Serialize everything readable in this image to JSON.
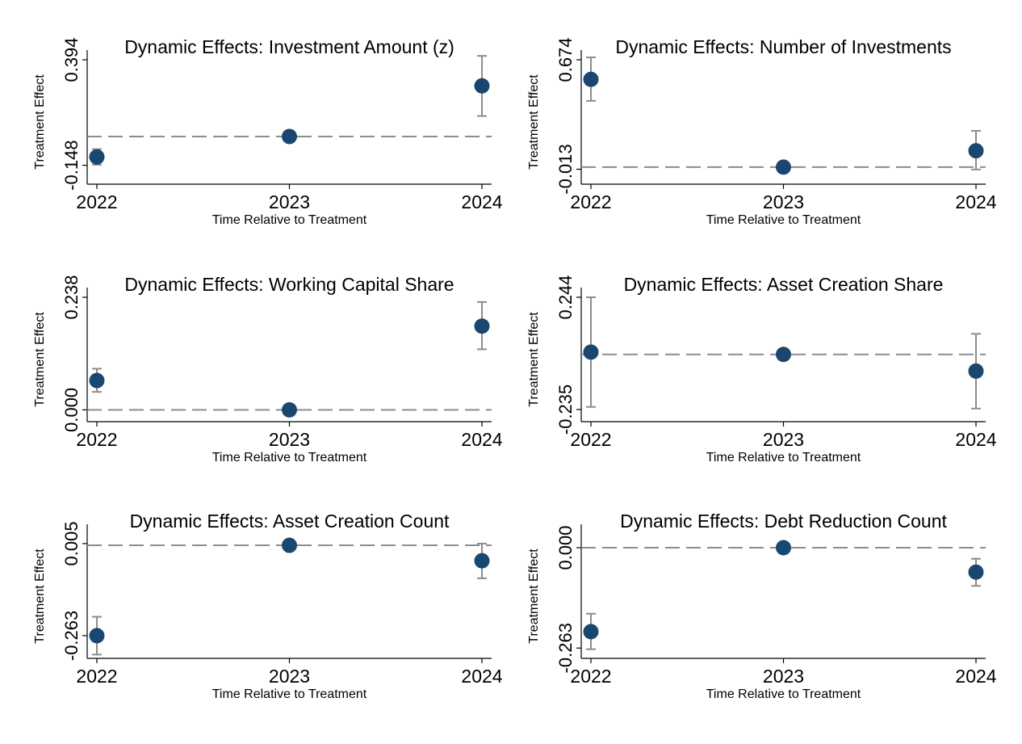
{
  "colors": {
    "marker": "#1a476f",
    "ci": "#8c8c8c",
    "reference": "#8c8c8c",
    "axis": "#000000"
  },
  "chart_data": [
    {
      "type": "scatter",
      "title": "Dynamic Effects: Investment Amount (z)",
      "xlabel": "Time Relative to Treatment",
      "ylabel": "Treatment Effect",
      "x": [
        2022,
        2023,
        2024
      ],
      "xticks": [
        "2022",
        "2023",
        "2024"
      ],
      "yticks": [
        "-0.148",
        "0.394"
      ],
      "ytick_values": [
        -0.148,
        0.394
      ],
      "ylim": [
        -0.245,
        0.394
      ],
      "reference_line": 0,
      "estimates": [
        -0.105,
        0.0,
        0.26
      ],
      "ci_low": [
        -0.145,
        0.0,
        0.105
      ],
      "ci_high": [
        -0.065,
        0.0,
        0.414
      ],
      "grid": false,
      "legend": "none"
    },
    {
      "type": "scatter",
      "title": "Dynamic Effects: Number of Investments",
      "xlabel": "Time Relative to Treatment",
      "ylabel": "Treatment Effect",
      "x": [
        2022,
        2023,
        2024
      ],
      "xticks": [
        "2022",
        "2023",
        "2024"
      ],
      "yticks": [
        "-0.013",
        "0.674"
      ],
      "ytick_values": [
        -0.013,
        0.674
      ],
      "ylim": [
        -0.107,
        0.674
      ],
      "reference_line": 0,
      "estimates": [
        0.551,
        0.0,
        0.103
      ],
      "ci_low": [
        0.416,
        0.0,
        -0.015
      ],
      "ci_high": [
        0.689,
        0.0,
        0.228
      ],
      "grid": false,
      "legend": "none"
    },
    {
      "type": "scatter",
      "title": "Dynamic Effects: Working Capital Share",
      "xlabel": "Time Relative to Treatment",
      "ylabel": "Treatment Effect",
      "x": [
        2022,
        2023,
        2024
      ],
      "xticks": [
        "2022",
        "2023",
        "2024"
      ],
      "yticks": [
        "0.000",
        "0.238"
      ],
      "ytick_values": [
        0.0,
        0.238
      ],
      "ylim": [
        -0.025,
        0.238
      ],
      "reference_line": 0,
      "estimates": [
        0.062,
        0.0,
        0.177
      ],
      "ci_low": [
        0.038,
        0.0,
        0.128
      ],
      "ci_high": [
        0.087,
        0.0,
        0.228
      ],
      "grid": false,
      "legend": "none"
    },
    {
      "type": "scatter",
      "title": "Dynamic Effects: Asset Creation Share",
      "xlabel": "Time Relative to Treatment",
      "ylabel": "Treatment Effect",
      "x": [
        2022,
        2023,
        2024
      ],
      "xticks": [
        "2022",
        "2023",
        "2024"
      ],
      "yticks": [
        "-0.235",
        "0.244"
      ],
      "ytick_values": [
        -0.235,
        0.244
      ],
      "ylim": [
        -0.287,
        0.244
      ],
      "reference_line": 0,
      "estimates": [
        0.01,
        0.0,
        -0.071
      ],
      "ci_low": [
        -0.224,
        0.0,
        -0.231
      ],
      "ci_high": [
        0.244,
        0.0,
        0.088
      ],
      "grid": false,
      "legend": "none"
    },
    {
      "type": "scatter",
      "title": "Dynamic Effects: Asset Creation Count",
      "xlabel": "Time Relative to Treatment",
      "ylabel": "Treatment Effect",
      "x": [
        2022,
        2023,
        2024
      ],
      "xticks": [
        "2022",
        "2023",
        "2024"
      ],
      "yticks": [
        "-0.263",
        "0.005"
      ],
      "ytick_values": [
        -0.263,
        0.005
      ],
      "ylim": [
        -0.329,
        0.033
      ],
      "reference_line": 0,
      "estimates": [
        -0.263,
        0.0,
        -0.045
      ],
      "ci_low": [
        -0.318,
        0.0,
        -0.096
      ],
      "ci_high": [
        -0.208,
        0.0,
        0.005
      ],
      "grid": false,
      "legend": "none"
    },
    {
      "type": "scatter",
      "title": "Dynamic Effects: Debt Reduction Count",
      "xlabel": "Time Relative to Treatment",
      "ylabel": "Treatment Effect",
      "x": [
        2022,
        2023,
        2024
      ],
      "xticks": [
        "2022",
        "2023",
        "2024"
      ],
      "yticks": [
        "-0.263",
        "0.000"
      ],
      "ytick_values": [
        -0.263,
        0.0
      ],
      "ylim": [
        -0.29,
        0.036
      ],
      "reference_line": 0,
      "estimates": [
        -0.22,
        0.0,
        -0.064
      ],
      "ci_low": [
        -0.266,
        0.0,
        -0.1
      ],
      "ci_high": [
        -0.173,
        0.0,
        -0.029
      ],
      "grid": false,
      "legend": "none"
    }
  ]
}
